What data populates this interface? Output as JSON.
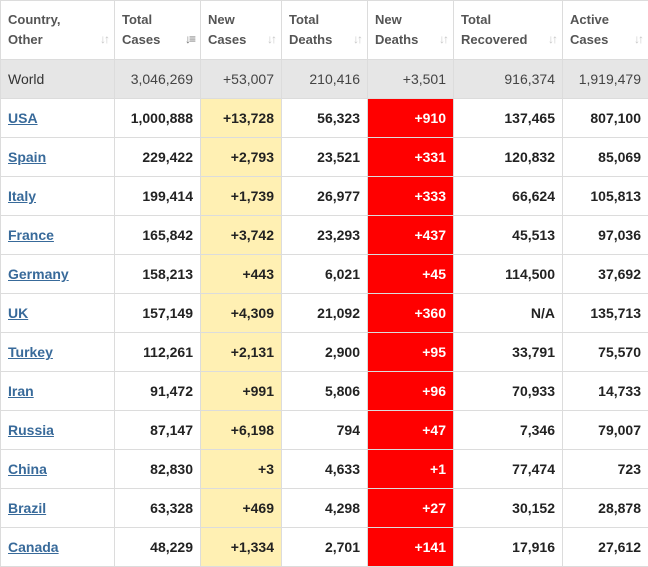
{
  "columns": [
    {
      "line1": "Country,",
      "line2": "Other"
    },
    {
      "line1": "Total",
      "line2": "Cases"
    },
    {
      "line1": "New",
      "line2": "Cases"
    },
    {
      "line1": "Total",
      "line2": "Deaths"
    },
    {
      "line1": "New",
      "line2": "Deaths"
    },
    {
      "line1": "Total",
      "line2": "Recovered"
    },
    {
      "line1": "Active",
      "line2": "Cases"
    }
  ],
  "sort_icon": "sort-arrows-icon",
  "world": {
    "country": "World",
    "total_cases": "3,046,269",
    "new_cases": "+53,007",
    "total_deaths": "210,416",
    "new_deaths": "+3,501",
    "total_recovered": "916,374",
    "active_cases": "1,919,479"
  },
  "rows": [
    {
      "country": "USA",
      "total_cases": "1,000,888",
      "new_cases": "+13,728",
      "total_deaths": "56,323",
      "new_deaths": "+910",
      "total_recovered": "137,465",
      "active_cases": "807,100"
    },
    {
      "country": "Spain",
      "total_cases": "229,422",
      "new_cases": "+2,793",
      "total_deaths": "23,521",
      "new_deaths": "+331",
      "total_recovered": "120,832",
      "active_cases": "85,069"
    },
    {
      "country": "Italy",
      "total_cases": "199,414",
      "new_cases": "+1,739",
      "total_deaths": "26,977",
      "new_deaths": "+333",
      "total_recovered": "66,624",
      "active_cases": "105,813"
    },
    {
      "country": "France",
      "total_cases": "165,842",
      "new_cases": "+3,742",
      "total_deaths": "23,293",
      "new_deaths": "+437",
      "total_recovered": "45,513",
      "active_cases": "97,036"
    },
    {
      "country": "Germany",
      "total_cases": "158,213",
      "new_cases": "+443",
      "total_deaths": "6,021",
      "new_deaths": "+45",
      "total_recovered": "114,500",
      "active_cases": "37,692"
    },
    {
      "country": "UK",
      "total_cases": "157,149",
      "new_cases": "+4,309",
      "total_deaths": "21,092",
      "new_deaths": "+360",
      "total_recovered": "N/A",
      "active_cases": "135,713"
    },
    {
      "country": "Turkey",
      "total_cases": "112,261",
      "new_cases": "+2,131",
      "total_deaths": "2,900",
      "new_deaths": "+95",
      "total_recovered": "33,791",
      "active_cases": "75,570"
    },
    {
      "country": "Iran",
      "total_cases": "91,472",
      "new_cases": "+991",
      "total_deaths": "5,806",
      "new_deaths": "+96",
      "total_recovered": "70,933",
      "active_cases": "14,733"
    },
    {
      "country": "Russia",
      "total_cases": "87,147",
      "new_cases": "+6,198",
      "total_deaths": "794",
      "new_deaths": "+47",
      "total_recovered": "7,346",
      "active_cases": "79,007"
    },
    {
      "country": "China",
      "total_cases": "82,830",
      "new_cases": "+3",
      "total_deaths": "4,633",
      "new_deaths": "+1",
      "total_recovered": "77,474",
      "active_cases": "723"
    },
    {
      "country": "Brazil",
      "total_cases": "63,328",
      "new_cases": "+469",
      "total_deaths": "4,298",
      "new_deaths": "+27",
      "total_recovered": "30,152",
      "active_cases": "28,878"
    },
    {
      "country": "Canada",
      "total_cases": "48,229",
      "new_cases": "+1,334",
      "total_deaths": "2,701",
      "new_deaths": "+141",
      "total_recovered": "17,916",
      "active_cases": "27,612"
    }
  ],
  "colors": {
    "new_cases_bg": "#fff0b3",
    "new_deaths_bg": "#ff0000",
    "link": "#386a9a",
    "world_bg": "#e6e6e6"
  }
}
